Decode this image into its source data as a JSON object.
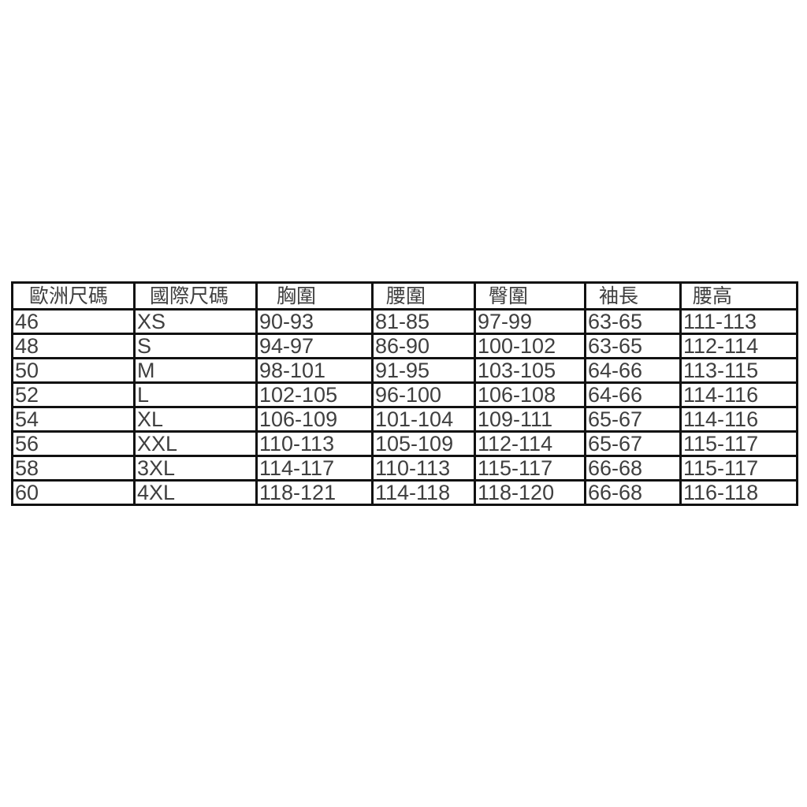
{
  "table": {
    "headers": [
      "歐洲尺碼",
      "國際尺碼",
      "胸圍",
      "腰圍",
      "臀圍",
      "袖長",
      "腰高"
    ],
    "rows": [
      [
        "46",
        "XS",
        "90-93",
        "81-85",
        "97-99",
        "63-65",
        "111-113"
      ],
      [
        "48",
        "S",
        "94-97",
        "86-90",
        "100-102",
        "63-65",
        "112-114"
      ],
      [
        "50",
        "M",
        "98-101",
        "91-95",
        "103-105",
        "64-66",
        "113-115"
      ],
      [
        "52",
        "L",
        "102-105",
        "96-100",
        "106-108",
        "64-66",
        "114-116"
      ],
      [
        "54",
        "XL",
        "106-109",
        "101-104",
        "109-111",
        "65-67",
        "114-116"
      ],
      [
        "56",
        "XXL",
        "110-113",
        "105-109",
        "112-114",
        "65-67",
        "115-117"
      ],
      [
        "58",
        "3XL",
        "114-117",
        "110-113",
        "115-117",
        "66-68",
        "115-117"
      ],
      [
        "60",
        "4XL",
        "118-121",
        "114-118",
        "118-120",
        "66-68",
        "116-118"
      ]
    ]
  }
}
